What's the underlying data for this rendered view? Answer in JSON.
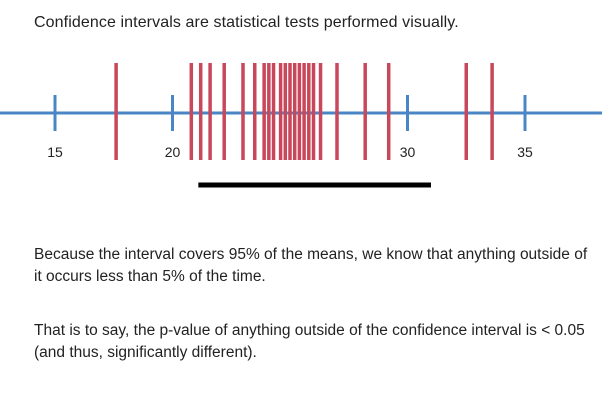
{
  "title": "Confidence intervals are statistical tests performed visually.",
  "paragraphs": [
    "Because the interval covers 95% of the means, we know that anything outside of it occurs less than 5% of the time.",
    "That is to say, the p-value of anything outside of the confidence interval is < 0.05 (and thus, significantly different)."
  ],
  "number_line": {
    "ticks": [
      15,
      20,
      25,
      30,
      35
    ],
    "tick_labels": [
      "15",
      "20",
      "",
      "30",
      "35"
    ],
    "sample_means": [
      17.6,
      20.8,
      21.2,
      21.6,
      22.2,
      23.0,
      23.5,
      23.9,
      24.1,
      24.3,
      24.6,
      24.8,
      25.0,
      25.2,
      25.4,
      25.6,
      25.8,
      26.0,
      26.3,
      27.0,
      28.2,
      29.2,
      32.5,
      33.6
    ],
    "interval": [
      21.1,
      31.0
    ],
    "colors": {
      "axis": "#4a86c6",
      "means": "#c9475a",
      "interval": "#000000"
    }
  }
}
